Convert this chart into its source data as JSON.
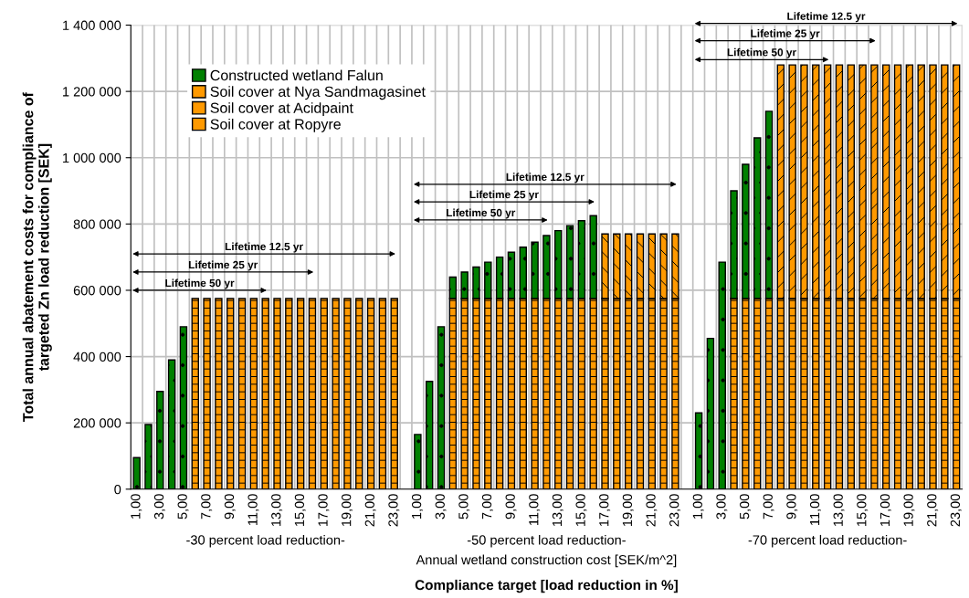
{
  "chart_data": {
    "type": "bar",
    "stacked": true,
    "ylabel": "Total annual abatement costs for compliance of\ntargeted Zn load reduction [SEK]",
    "xlabel": "Compliance target [load reduction in %]",
    "categories": [
      "1,00",
      null,
      "3,00",
      null,
      "5,00",
      null,
      "7,00",
      null,
      "9,00",
      null,
      "11,00",
      null,
      "13,00",
      null,
      "15,00",
      null,
      "17,00",
      null,
      "19,00",
      null,
      "21,00",
      null,
      "23,00",
      null,
      "1,00",
      null,
      "3,00",
      null,
      "5,00",
      null,
      "7,00",
      null,
      "9,00",
      null,
      "11,00",
      null,
      "13,00",
      null,
      "15,00",
      null,
      "17,00",
      null,
      "19,00",
      null,
      "21,00",
      null,
      "23,00",
      null,
      "1,00",
      null,
      "3,00",
      null,
      "5,00",
      null,
      "7,00",
      null,
      "9,00",
      null,
      "11,00",
      null,
      "13,00",
      null,
      "15,00",
      null,
      "17,00",
      null,
      "19,00",
      null,
      "21,00",
      null,
      "23,00"
    ],
    "series": [
      {
        "name": "Soil cover at Ropyre",
        "color": "#ff9900",
        "values": [
          null,
          null,
          null,
          null,
          null,
          575000,
          575000,
          575000,
          575000,
          575000,
          575000,
          575000,
          575000,
          575000,
          575000,
          575000,
          575000,
          575000,
          575000,
          575000,
          575000,
          575000,
          575000,
          null,
          null,
          null,
          null,
          575000,
          575000,
          575000,
          575000,
          575000,
          575000,
          575000,
          575000,
          575000,
          575000,
          575000,
          575000,
          575000,
          575000,
          575000,
          575000,
          575000,
          575000,
          575000,
          575000,
          null,
          null,
          null,
          null,
          575000,
          575000,
          575000,
          575000,
          575000,
          575000,
          575000,
          575000,
          575000,
          575000,
          575000,
          575000,
          575000,
          575000,
          575000,
          575000,
          575000,
          575000,
          575000,
          575000
        ]
      },
      {
        "name": "Soil cover at Acidpaint",
        "color": "#ff9900",
        "values": [
          null,
          null,
          null,
          null,
          null,
          null,
          null,
          null,
          null,
          null,
          null,
          null,
          null,
          null,
          null,
          null,
          null,
          null,
          null,
          null,
          null,
          null,
          null,
          null,
          null,
          null,
          null,
          null,
          null,
          null,
          null,
          null,
          null,
          null,
          null,
          null,
          null,
          null,
          null,
          null,
          195000,
          195000,
          195000,
          195000,
          195000,
          195000,
          195000,
          null,
          null,
          null,
          null,
          null,
          null,
          null,
          null,
          null,
          null,
          null,
          null,
          null,
          null,
          null,
          null,
          null,
          null,
          null,
          null,
          null,
          null,
          null,
          null
        ]
      },
      {
        "name": "Soil cover at Nya Sandmagasinet",
        "color": "#ff9900",
        "values": [
          null,
          null,
          null,
          null,
          null,
          null,
          null,
          null,
          null,
          null,
          null,
          null,
          null,
          null,
          null,
          null,
          null,
          null,
          null,
          null,
          null,
          null,
          null,
          null,
          null,
          null,
          null,
          null,
          null,
          null,
          null,
          null,
          null,
          null,
          null,
          null,
          null,
          null,
          null,
          null,
          null,
          null,
          null,
          null,
          null,
          null,
          null,
          null,
          null,
          null,
          null,
          null,
          null,
          null,
          null,
          705000,
          705000,
          705000,
          705000,
          705000,
          705000,
          705000,
          705000,
          705000,
          705000,
          705000,
          705000,
          705000,
          705000,
          705000,
          705000
        ]
      },
      {
        "name": "Constructed wetland Falun",
        "color": "#008000",
        "values": [
          95000,
          195000,
          295000,
          390000,
          490000,
          null,
          null,
          null,
          null,
          null,
          null,
          null,
          null,
          null,
          null,
          null,
          null,
          null,
          null,
          null,
          null,
          null,
          null,
          null,
          165000,
          325000,
          490000,
          65000,
          80000,
          95000,
          110000,
          125000,
          140000,
          155000,
          170000,
          190000,
          205000,
          220000,
          235000,
          250000,
          null,
          null,
          null,
          null,
          null,
          null,
          null,
          null,
          230000,
          455000,
          685000,
          325000,
          405000,
          485000,
          565000,
          null,
          null,
          null,
          null,
          null,
          null,
          null,
          null,
          null,
          null,
          null,
          null,
          null,
          null,
          null,
          null
        ]
      }
    ],
    "ylim": [
      0,
      1400000
    ],
    "yticks": [
      {
        "value": 0,
        "label": "0"
      },
      {
        "value": 200000,
        "label": "200 000"
      },
      {
        "value": 400000,
        "label": "400 000"
      },
      {
        "value": 600000,
        "label": "600 000"
      },
      {
        "value": 800000,
        "label": "800 000"
      },
      {
        "value": 1000000,
        "label": "1 000 000"
      },
      {
        "value": 1200000,
        "label": "1 200 000"
      },
      {
        "value": 1400000,
        "label": "1 400 000"
      }
    ],
    "grid": true,
    "legend": "top left",
    "annotations": [
      "-30 percent load reduction-",
      "-50 percent load reduction-",
      "-70 percent load reduction-",
      "Lifetime 50 yr",
      "Lifetime 25 yr",
      "Lifetime 12.5 yr",
      "Lifetime 50 yr",
      "Lifetime 25 yr",
      "Lifetime 12.5 yr",
      "Lifetime 50 yr",
      "Lifetime 25 yr",
      "Lifetime 12.5 yr",
      "Annual wetland construction cost [SEK/m^2]"
    ]
  }
}
